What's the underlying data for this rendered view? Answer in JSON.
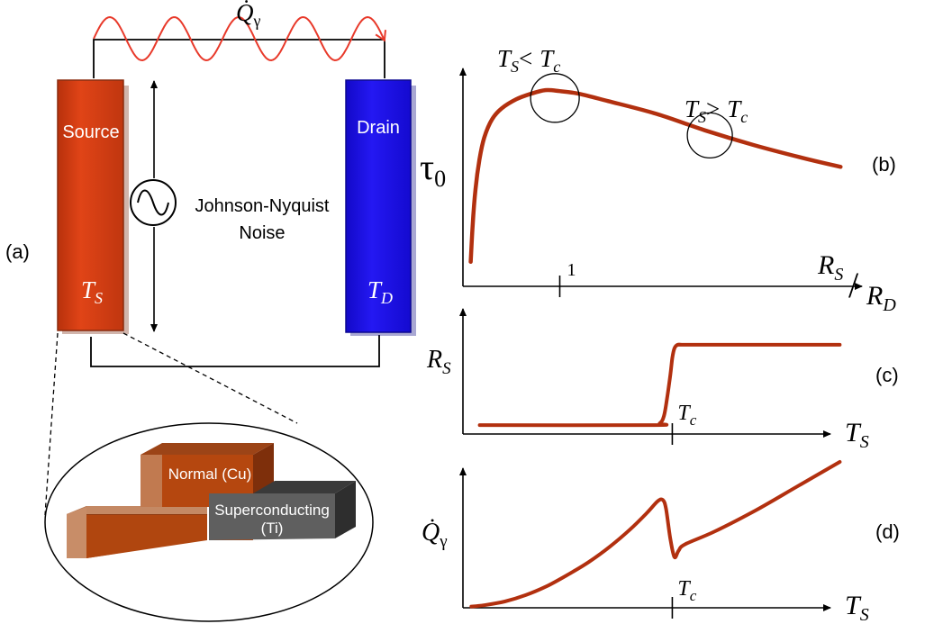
{
  "panel_labels": {
    "a": "(a)",
    "b": "(b)",
    "c": "(c)",
    "d": "(d)"
  },
  "circuit": {
    "heat_flow_label": "Q̇",
    "heat_flow_sub": "γ",
    "source_label": "Source",
    "source_temp": "T",
    "source_temp_sub": "S",
    "drain_label": "Drain",
    "drain_temp": "T",
    "drain_temp_sub": "D",
    "noise_line1": "Johnson-Nyquist",
    "noise_line2": "Noise",
    "colors": {
      "source": "#d03a10",
      "drain": "#1a10e8",
      "wave": "#e8392a"
    }
  },
  "inset": {
    "normal_label": "Normal (Cu)",
    "super_line1": "Superconducting",
    "super_line2": "(Ti)"
  },
  "chart_data": [
    {
      "id": "b",
      "type": "line",
      "ylabel": "τ",
      "ylabel_sub": "0",
      "xlabel_num": "R",
      "xlabel_num_sub": "S",
      "xlabel_slash": "/",
      "xlabel_den": "R",
      "xlabel_den_sub": "D",
      "xtick_label": "1",
      "xtick_value": 1,
      "xlim": [
        0,
        4.0
      ],
      "ylim": [
        0,
        1.05
      ],
      "series": [
        {
          "name": "tau0",
          "x": [
            0.08,
            0.1,
            0.13,
            0.17,
            0.22,
            0.3,
            0.4,
            0.55,
            0.7,
            0.85,
            1.0,
            1.2,
            1.5,
            2.0,
            2.5,
            3.0,
            3.5,
            3.9
          ],
          "y": [
            0.06,
            0.26,
            0.46,
            0.62,
            0.74,
            0.84,
            0.9,
            0.95,
            0.98,
            1.0,
            0.995,
            0.98,
            0.94,
            0.87,
            0.78,
            0.7,
            0.63,
            0.58
          ]
        }
      ],
      "annotations": [
        {
          "text": "T",
          "sub": "S",
          "rel": "<",
          "rhs": "T",
          "rhs_sub": "c",
          "at_x": 0.95
        },
        {
          "text": "T",
          "sub": "S",
          "rel": ">",
          "rhs": "T",
          "rhs_sub": "c",
          "at_x": 2.55
        }
      ],
      "color": "#b2300f"
    },
    {
      "id": "c",
      "type": "line",
      "ylabel": "R",
      "ylabel_sub": "S",
      "xlabel": "T",
      "xlabel_sub": "S",
      "xtick_label": "T",
      "xtick_label_sub": "c",
      "xtick_value": 1,
      "xlim": [
        0,
        1.85
      ],
      "ylim": [
        0,
        1.1
      ],
      "series": [
        {
          "name": "RS",
          "x": [
            0.08,
            0.9,
            0.94,
            0.96,
            0.975,
            0.99,
            1.0,
            1.01,
            1.025,
            1.05,
            1.1,
            1.8
          ],
          "y": [
            0.1,
            0.1,
            0.12,
            0.2,
            0.4,
            0.65,
            0.85,
            0.96,
            1.0,
            1.0,
            1.0,
            1.0
          ]
        }
      ],
      "color": "#b2300f"
    },
    {
      "id": "d",
      "type": "line",
      "ylabel": "Q̇",
      "ylabel_sub": "γ",
      "xlabel": "T",
      "xlabel_sub": "S",
      "xtick_label": "T",
      "xtick_label_sub": "c",
      "xtick_value": 1,
      "xlim": [
        0,
        1.85
      ],
      "ylim": [
        0,
        1.2
      ],
      "series": [
        {
          "name": "Qgamma",
          "x": [
            0.04,
            0.1,
            0.2,
            0.3,
            0.4,
            0.5,
            0.6,
            0.7,
            0.8,
            0.88,
            0.93,
            0.955,
            0.97,
            0.99,
            1.01,
            1.03,
            1.06,
            1.2,
            1.4,
            1.6,
            1.8
          ],
          "y": [
            0.01,
            0.02,
            0.05,
            0.1,
            0.17,
            0.26,
            0.36,
            0.48,
            0.62,
            0.75,
            0.84,
            0.85,
            0.78,
            0.55,
            0.4,
            0.45,
            0.5,
            0.6,
            0.77,
            0.96,
            1.15
          ]
        }
      ],
      "color": "#b2300f"
    }
  ]
}
